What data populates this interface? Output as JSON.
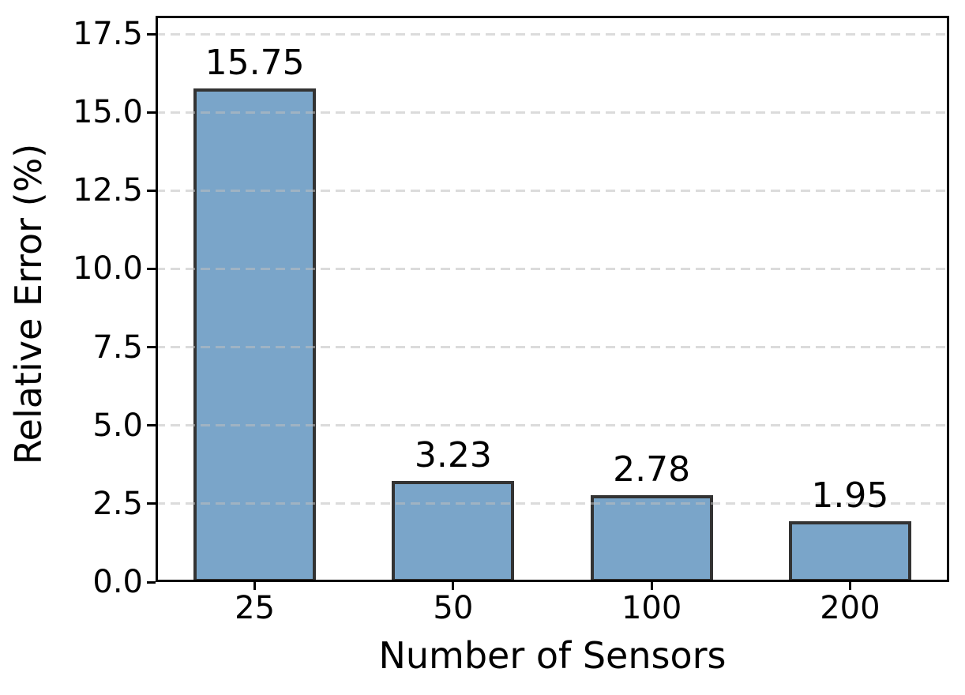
{
  "chart_data": {
    "type": "bar",
    "title": "",
    "xlabel": "Number of Sensors",
    "ylabel": "Relative Error (%)",
    "categories": [
      "25",
      "50",
      "100",
      "200"
    ],
    "values": [
      15.75,
      3.23,
      2.78,
      1.95
    ],
    "bar_value_labels": [
      "15.75",
      "3.23",
      "2.78",
      "1.95"
    ],
    "yticks": [
      0.0,
      2.5,
      5.0,
      7.5,
      10.0,
      12.5,
      15.0,
      17.5
    ],
    "ytick_labels": [
      "0.0",
      "2.5",
      "5.0",
      "7.5",
      "10.0",
      "12.5",
      "15.0",
      "17.5"
    ],
    "ylim": [
      0,
      18.08
    ],
    "grid": "horizontal-dashed",
    "legend": null,
    "bar_width_fraction": 0.615,
    "colors": {
      "bar_fill": "#7aa5c9",
      "bar_edge": "#333333",
      "gridline": "rgba(190,190,190,0.55)",
      "spine": "#000000",
      "text": "#000000",
      "background": "#ffffff"
    }
  }
}
